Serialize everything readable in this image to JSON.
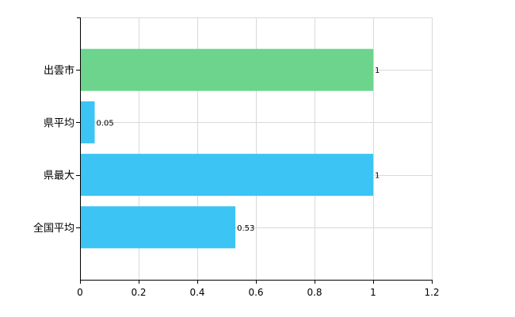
{
  "chart_data": {
    "type": "bar",
    "orientation": "horizontal",
    "categories": [
      "出雲市",
      "県平均",
      "県最大",
      "全国平均"
    ],
    "values": [
      1,
      0.05,
      1,
      0.53
    ],
    "data_labels": [
      "1",
      "0.05",
      "1",
      "0.53"
    ],
    "bar_colors": [
      "#6cd48c",
      "#3cc4f4",
      "#3cc4f4",
      "#3cc4f4"
    ],
    "xlim": [
      0,
      1.2
    ],
    "xticks": [
      0,
      0.2,
      0.4,
      0.6,
      0.8,
      1,
      1.2
    ],
    "xtick_labels": [
      "0",
      "0.2",
      "0.4",
      "0.6",
      "0.8",
      "1",
      "1.2"
    ],
    "grid": true,
    "title": "",
    "xlabel": "",
    "ylabel": ""
  }
}
